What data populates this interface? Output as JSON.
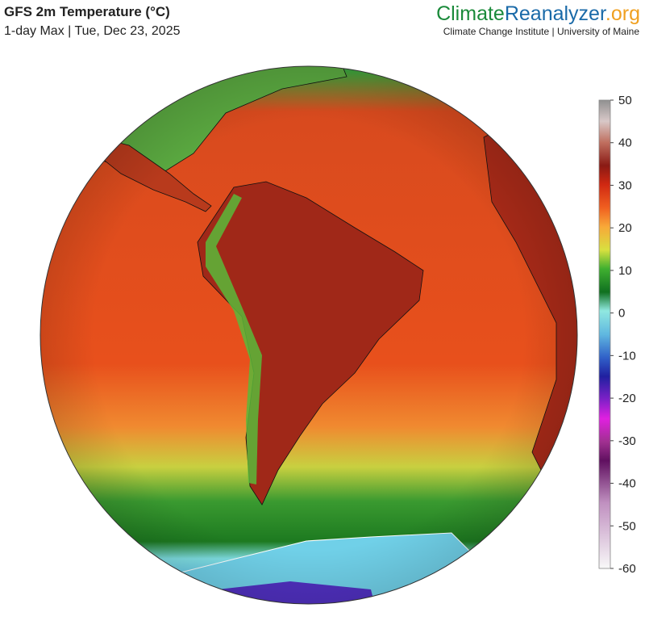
{
  "header": {
    "title": "GFS 2m Temperature (°C)",
    "subtitle": "1-day Max | Tue, Dec 23, 2025",
    "brand": {
      "part1": "Climate",
      "part2": "Reanalyzer",
      "part3": ".org"
    },
    "credit": "Climate Change Institute | University of Maine"
  },
  "colorbar": {
    "range": [
      -60,
      50
    ],
    "ticks": [
      50,
      40,
      30,
      20,
      10,
      0,
      -10,
      -20,
      -30,
      -40,
      -50,
      -60
    ]
  }
}
